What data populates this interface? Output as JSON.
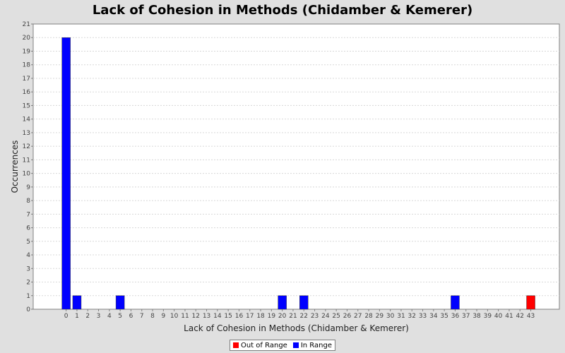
{
  "chart_data": {
    "type": "bar",
    "title": "Lack of Cohesion in Methods (Chidamber & Kemerer)",
    "xlabel": "Lack of Cohesion in Methods (Chidamber & Kemerer)",
    "ylabel": "Occurrences",
    "ylim": [
      0,
      21
    ],
    "grid": true,
    "legend_position": "bottom",
    "categories": [
      "0",
      "1",
      "2",
      "3",
      "4",
      "5",
      "6",
      "7",
      "8",
      "9",
      "10",
      "11",
      "12",
      "13",
      "14",
      "15",
      "16",
      "17",
      "18",
      "19",
      "20",
      "21",
      "22",
      "23",
      "24",
      "25",
      "26",
      "27",
      "28",
      "29",
      "30",
      "31",
      "32",
      "33",
      "34",
      "35",
      "36",
      "37",
      "38",
      "39",
      "40",
      "41",
      "42",
      "43"
    ],
    "series": [
      {
        "name": "Out of Range",
        "color": "#ff0000",
        "values": [
          0,
          0,
          0,
          0,
          0,
          0,
          0,
          0,
          0,
          0,
          0,
          0,
          0,
          0,
          0,
          0,
          0,
          0,
          0,
          0,
          0,
          0,
          0,
          0,
          0,
          0,
          0,
          0,
          0,
          0,
          0,
          0,
          0,
          0,
          0,
          0,
          0,
          0,
          0,
          0,
          0,
          0,
          0,
          1
        ]
      },
      {
        "name": "In Range",
        "color": "#0000ff",
        "values": [
          20,
          1,
          0,
          0,
          0,
          1,
          0,
          0,
          0,
          0,
          0,
          0,
          0,
          0,
          0,
          0,
          0,
          0,
          0,
          0,
          1,
          0,
          1,
          0,
          0,
          0,
          0,
          0,
          0,
          0,
          0,
          0,
          0,
          0,
          0,
          0,
          1,
          0,
          0,
          0,
          0,
          0,
          0,
          0
        ]
      }
    ],
    "colors": {
      "plot_background": "#ffffff",
      "page_background": "#e0e0e0",
      "gridline": "#d8d8d8"
    }
  }
}
